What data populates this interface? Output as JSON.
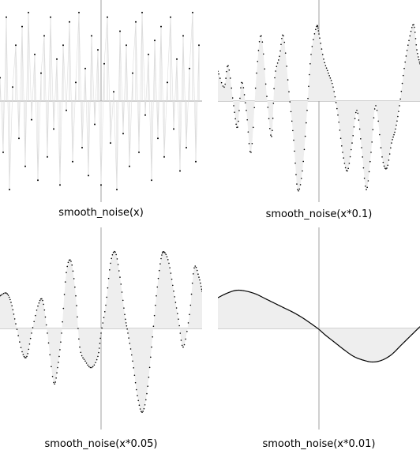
{
  "chart_data": [
    {
      "type": "area",
      "title": "smooth_noise(x)",
      "xlim": [
        -128,
        128
      ],
      "ylim": [
        -1,
        1
      ],
      "grid": false,
      "fill_color": "#eeeeee",
      "stroke_color": "#dddddd",
      "point_color": "#000000",
      "series": [
        {
          "x": [
            -128,
            -124,
            -120,
            -116,
            -112,
            -108,
            -104,
            -100,
            -96,
            -92,
            -88,
            -84,
            -80,
            -76,
            -72,
            -68,
            -64,
            -60,
            -56,
            -52,
            -48,
            -44,
            -40,
            -36,
            -32,
            -28,
            -24,
            -20,
            -16,
            -12,
            -8,
            -4,
            0,
            4,
            8,
            12,
            16,
            20,
            24,
            28,
            32,
            36,
            40,
            44,
            48,
            52,
            56,
            60,
            64,
            68,
            72,
            76,
            80,
            84,
            88,
            92,
            96,
            100,
            104,
            108,
            112,
            116,
            120,
            124
          ],
          "y": [
            0.25,
            -0.55,
            0.9,
            -0.95,
            0.15,
            0.6,
            -0.4,
            0.8,
            -0.7,
            0.95,
            -0.2,
            0.5,
            -0.85,
            0.3,
            0.7,
            -0.6,
            0.9,
            -0.3,
            0.45,
            -0.9,
            0.6,
            -0.1,
            0.85,
            -0.65,
            0.2,
            0.95,
            -0.5,
            0.35,
            -0.8,
            0.7,
            -0.25,
            0.55,
            -0.9,
            0.4,
            0.9,
            -0.45,
            0.1,
            -0.95,
            0.75,
            -0.35,
            0.6,
            -0.7,
            0.3,
            0.85,
            -0.55,
            0.95,
            -0.15,
            0.5,
            -0.85,
            0.65,
            -0.4,
            0.8,
            -0.6,
            0.2,
            0.9,
            -0.3,
            0.45,
            -0.75,
            0.7,
            -0.5,
            0.35,
            0.95,
            -0.65,
            0.6
          ]
        }
      ]
    },
    {
      "type": "area",
      "title": "smooth_noise(x*0.1)",
      "xlim": [
        -128,
        128
      ],
      "ylim": [
        -1,
        1
      ],
      "grid": false,
      "fill_color": "#eeeeee",
      "stroke_color": "#dddddd",
      "point_color": "#000000",
      "series": [
        {
          "x": [
            -128,
            -120,
            -115,
            -108,
            -103,
            -98,
            -92,
            -86,
            -79,
            -73,
            -66,
            -60,
            -56,
            -50,
            -45,
            -38,
            -32,
            -27,
            -21,
            -15,
            -10,
            -3,
            0,
            6,
            12,
            18,
            24,
            30,
            36,
            42,
            48,
            54,
            60,
            66,
            72,
            80,
            86,
            92,
            97,
            102,
            108,
            114,
            120,
            124,
            128
          ],
          "y": [
            0.32,
            0.15,
            0.38,
            -0.05,
            -0.28,
            0.2,
            -0.1,
            -0.55,
            0.3,
            0.7,
            0.05,
            -0.38,
            0.25,
            0.48,
            0.7,
            0.1,
            -0.42,
            -0.95,
            -0.75,
            -0.1,
            0.5,
            0.8,
            0.72,
            0.45,
            0.3,
            0.15,
            -0.15,
            -0.55,
            -0.75,
            -0.45,
            -0.1,
            -0.5,
            -0.95,
            -0.55,
            -0.05,
            -0.6,
            -0.72,
            -0.45,
            -0.3,
            -0.05,
            0.35,
            0.65,
            0.82,
            0.55,
            0.4
          ]
        }
      ]
    },
    {
      "type": "area",
      "title": "smooth_noise(x*0.05)",
      "xlim": [
        -128,
        128
      ],
      "ylim": [
        -1,
        1
      ],
      "grid": false,
      "fill_color": "#eeeeee",
      "stroke_color": "#dddddd",
      "point_color": "#000000",
      "series": [
        {
          "x": [
            -128,
            -120,
            -114,
            -108,
            -100,
            -94,
            -88,
            -80,
            -74,
            -68,
            -60,
            -55,
            -50,
            -44,
            -38,
            -32,
            -27,
            -20,
            -12,
            -4,
            0,
            6,
            12,
            18,
            24,
            30,
            34,
            40,
            46,
            52,
            58,
            64,
            70,
            76,
            80,
            86,
            92,
            98,
            104,
            112,
            118,
            124,
            128
          ],
          "y": [
            0.35,
            0.38,
            0.28,
            0.05,
            -0.25,
            -0.3,
            -0.05,
            0.24,
            0.3,
            -0.05,
            -0.58,
            -0.42,
            -0.05,
            0.6,
            0.72,
            0.35,
            -0.2,
            -0.35,
            -0.42,
            -0.3,
            -0.05,
            0.25,
            0.7,
            0.82,
            0.55,
            0.15,
            -0.05,
            -0.35,
            -0.72,
            -0.9,
            -0.7,
            -0.2,
            0.35,
            0.75,
            0.82,
            0.7,
            0.4,
            0.1,
            -0.2,
            0.15,
            0.65,
            0.55,
            0.4
          ]
        }
      ]
    },
    {
      "type": "area",
      "title": "smooth_noise(x*0.01)",
      "xlim": [
        -128,
        128
      ],
      "ylim": [
        -1,
        1
      ],
      "grid": false,
      "fill_color": "#eeeeee",
      "stroke_color": "#000000",
      "point_color": "#000000",
      "series": [
        {
          "x": [
            -128,
            -116,
            -104,
            -92,
            -80,
            -68,
            -56,
            -44,
            -32,
            -20,
            -8,
            0,
            8,
            20,
            32,
            44,
            56,
            68,
            80,
            92,
            104,
            116,
            128
          ],
          "y": [
            0.33,
            0.38,
            0.41,
            0.4,
            0.37,
            0.32,
            0.27,
            0.22,
            0.17,
            0.11,
            0.04,
            -0.01,
            -0.07,
            -0.15,
            -0.23,
            -0.3,
            -0.34,
            -0.36,
            -0.34,
            -0.28,
            -0.18,
            -0.08,
            0.02
          ]
        }
      ]
    }
  ]
}
